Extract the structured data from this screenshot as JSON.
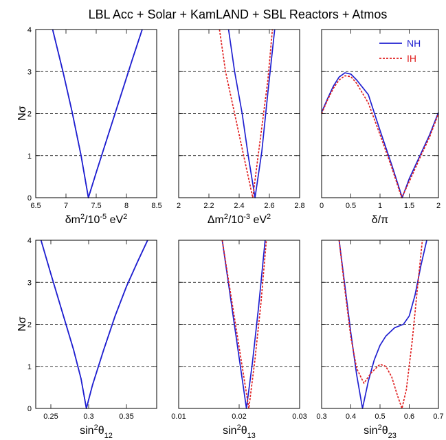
{
  "title": "LBL Acc + Solar + KamLAND + SBL Reactors + Atmos",
  "ylabel": "Nσ",
  "legend": [
    {
      "label": "NH",
      "color": "#1f1fd0",
      "dash": "solid"
    },
    {
      "label": "IH",
      "color": "#e02020",
      "dash": "dotted"
    }
  ],
  "chart_data": [
    {
      "type": "line",
      "id": "dm2-small",
      "xlabel": {
        "main": "δm",
        "sup1": "2",
        "mid": "/10",
        "sup2": "-5",
        "tail": " eV",
        "sup3": "2"
      },
      "xlim": [
        6.5,
        8.5
      ],
      "ylim": [
        0,
        4
      ],
      "xticks": [
        6.5,
        7,
        7.5,
        8,
        8.5
      ],
      "xtick_labels": [
        "6.5",
        "7",
        "7.5",
        "8",
        "8.5"
      ],
      "yticks": [
        0,
        1,
        2,
        3,
        4
      ],
      "ytick_labels": [
        "0",
        "1",
        "2",
        "3",
        "4"
      ],
      "grid_y": [
        1,
        2,
        3
      ],
      "series": [
        {
          "name": "NH",
          "color": "#1f1fd0",
          "dash": "solid",
          "x": [
            6.78,
            6.95,
            7.1,
            7.25,
            7.37,
            7.5,
            7.7,
            7.9,
            8.1,
            8.26
          ],
          "y": [
            4.0,
            3.0,
            2.05,
            1.0,
            0.0,
            0.6,
            1.5,
            2.4,
            3.3,
            4.0
          ]
        },
        {
          "name": "IH",
          "color": "#1f1fd0",
          "dash": "solid",
          "x": [
            6.78,
            6.95,
            7.1,
            7.25,
            7.37,
            7.5,
            7.7,
            7.9,
            8.1,
            8.26
          ],
          "y": [
            4.0,
            3.0,
            2.05,
            1.0,
            0.0,
            0.6,
            1.5,
            2.4,
            3.3,
            4.0
          ]
        }
      ]
    },
    {
      "type": "line",
      "id": "dm2-large",
      "xlabel": {
        "main": "Δm",
        "sup1": "2",
        "mid": "/10",
        "sup2": "-3",
        "tail": " eV",
        "sup3": "2"
      },
      "xlim": [
        2.0,
        2.8
      ],
      "ylim": [
        0,
        4
      ],
      "xticks": [
        2.0,
        2.2,
        2.4,
        2.6,
        2.8
      ],
      "xtick_labels": [
        "2",
        "2.2",
        "2.4",
        "2.6",
        "2.8"
      ],
      "yticks": [
        0,
        1,
        2,
        3,
        4
      ],
      "ytick_labels": [
        "",
        "",
        "",
        "",
        ""
      ],
      "grid_y": [
        1,
        2,
        3
      ],
      "series": [
        {
          "name": "NH",
          "color": "#1f1fd0",
          "dash": "solid",
          "x": [
            2.33,
            2.37,
            2.42,
            2.46,
            2.505,
            2.55,
            2.59,
            2.635
          ],
          "y": [
            4.0,
            3.0,
            2.0,
            1.0,
            0.0,
            1.1,
            2.5,
            4.0
          ]
        },
        {
          "name": "IH",
          "color": "#e02020",
          "dash": "dotted",
          "x": [
            2.27,
            2.31,
            2.37,
            2.43,
            2.49,
            2.54,
            2.59,
            2.62
          ],
          "y": [
            4.0,
            3.0,
            2.0,
            1.0,
            0.0,
            1.4,
            2.8,
            4.0
          ]
        }
      ]
    },
    {
      "type": "line",
      "id": "delta",
      "xlabel": {
        "main": "δ/π"
      },
      "xlim": [
        0,
        2
      ],
      "ylim": [
        0,
        4
      ],
      "xticks": [
        0,
        0.5,
        1.0,
        1.5,
        2.0
      ],
      "xtick_labels": [
        "0",
        "0.5",
        "1",
        "1.5",
        "2"
      ],
      "yticks": [
        0,
        1,
        2,
        3,
        4
      ],
      "ytick_labels": [
        "",
        "",
        "",
        "",
        ""
      ],
      "grid_y": [
        1,
        2,
        3
      ],
      "series": [
        {
          "name": "NH",
          "color": "#1f1fd0",
          "dash": "solid",
          "x": [
            0,
            0.1,
            0.2,
            0.3,
            0.4,
            0.5,
            0.6,
            0.8,
            1.0,
            1.2,
            1.38,
            1.5,
            1.7,
            1.85,
            2.0
          ],
          "y": [
            2.03,
            2.35,
            2.65,
            2.87,
            2.97,
            2.94,
            2.8,
            2.45,
            1.6,
            0.78,
            0.0,
            0.45,
            1.05,
            1.5,
            2.03
          ]
        },
        {
          "name": "IH",
          "color": "#e02020",
          "dash": "dotted",
          "x": [
            0,
            0.1,
            0.2,
            0.3,
            0.4,
            0.5,
            0.6,
            0.8,
            1.0,
            1.2,
            1.37,
            1.5,
            1.7,
            1.85,
            2.0
          ],
          "y": [
            2.0,
            2.32,
            2.6,
            2.8,
            2.9,
            2.88,
            2.72,
            2.25,
            1.5,
            0.72,
            0.0,
            0.38,
            1.0,
            1.45,
            2.0
          ]
        }
      ]
    },
    {
      "type": "line",
      "id": "sin2-12",
      "xlabel": {
        "main": "sin",
        "sup1": "2",
        "mid": "θ",
        "sub": "12"
      },
      "xlim": [
        0.23,
        0.39
      ],
      "ylim": [
        0,
        4
      ],
      "xticks": [
        0.25,
        0.3,
        0.35
      ],
      "xtick_labels": [
        "0.25",
        "0.3",
        "0.35"
      ],
      "yticks": [
        0,
        1,
        2,
        3,
        4
      ],
      "ytick_labels": [
        "0",
        "1",
        "2",
        "3",
        "4"
      ],
      "grid_y": [
        1,
        2,
        3
      ],
      "series": [
        {
          "name": "NH",
          "color": "#1f1fd0",
          "dash": "solid",
          "x": [
            0.237,
            0.25,
            0.265,
            0.28,
            0.29,
            0.297,
            0.305,
            0.32,
            0.335,
            0.35,
            0.365,
            0.378
          ],
          "y": [
            4.0,
            3.2,
            2.3,
            1.4,
            0.7,
            0.0,
            0.55,
            1.4,
            2.2,
            2.9,
            3.5,
            4.0
          ]
        },
        {
          "name": "IH",
          "color": "#1f1fd0",
          "dash": "solid",
          "x": [
            0.237,
            0.25,
            0.265,
            0.28,
            0.29,
            0.297,
            0.305,
            0.32,
            0.335,
            0.35,
            0.365,
            0.378
          ],
          "y": [
            4.0,
            3.2,
            2.3,
            1.4,
            0.7,
            0.0,
            0.55,
            1.4,
            2.2,
            2.9,
            3.5,
            4.0
          ]
        }
      ]
    },
    {
      "type": "line",
      "id": "sin2-13",
      "xlabel": {
        "main": "sin",
        "sup1": "2",
        "mid": "θ",
        "sub": "13"
      },
      "xlim": [
        0.01,
        0.03
      ],
      "ylim": [
        0,
        4
      ],
      "xticks": [
        0.01,
        0.02,
        0.03
      ],
      "xtick_labels": [
        "0.01",
        "0.02",
        "0.03"
      ],
      "yticks": [
        0,
        1,
        2,
        3,
        4
      ],
      "ytick_labels": [
        "",
        "",
        "",
        "",
        ""
      ],
      "grid_y": [
        1,
        2,
        3
      ],
      "series": [
        {
          "name": "NH",
          "color": "#1f1fd0",
          "dash": "solid",
          "x": [
            0.0172,
            0.0182,
            0.0192,
            0.0202,
            0.0212,
            0.0222,
            0.0232,
            0.0243
          ],
          "y": [
            4.0,
            3.0,
            2.0,
            1.0,
            0.0,
            1.1,
            2.4,
            4.0
          ]
        },
        {
          "name": "IH",
          "color": "#e02020",
          "dash": "dotted",
          "x": [
            0.0172,
            0.0183,
            0.0194,
            0.0205,
            0.0216,
            0.0226,
            0.0236,
            0.0245
          ],
          "y": [
            4.0,
            3.0,
            2.0,
            1.0,
            0.0,
            1.15,
            2.5,
            4.0
          ]
        }
      ]
    },
    {
      "type": "line",
      "id": "sin2-23",
      "xlabel": {
        "main": "sin",
        "sup1": "2",
        "mid": "θ",
        "sub": "23"
      },
      "xlim": [
        0.3,
        0.7
      ],
      "ylim": [
        0,
        4
      ],
      "xticks": [
        0.3,
        0.4,
        0.5,
        0.6,
        0.7
      ],
      "xtick_labels": [
        "0.3",
        "0.4",
        "0.5",
        "0.6",
        "0.7"
      ],
      "yticks": [
        0,
        1,
        2,
        3,
        4
      ],
      "ytick_labels": [
        "",
        "",
        "",
        "",
        ""
      ],
      "grid_y": [
        1,
        2,
        3
      ],
      "series": [
        {
          "name": "NH",
          "color": "#1f1fd0",
          "dash": "solid",
          "x": [
            0.36,
            0.38,
            0.4,
            0.42,
            0.44,
            0.46,
            0.48,
            0.5,
            0.52,
            0.55,
            0.58,
            0.6,
            0.62,
            0.64,
            0.66
          ],
          "y": [
            4.0,
            2.9,
            1.8,
            0.8,
            0.0,
            0.65,
            1.15,
            1.5,
            1.72,
            1.92,
            2.0,
            2.2,
            2.7,
            3.4,
            4.0
          ]
        },
        {
          "name": "IH",
          "color": "#e02020",
          "dash": "dotted",
          "x": [
            0.36,
            0.38,
            0.4,
            0.42,
            0.445,
            0.47,
            0.5,
            0.52,
            0.54,
            0.56,
            0.575,
            0.59,
            0.61,
            0.63,
            0.645
          ],
          "y": [
            4.0,
            2.8,
            1.7,
            0.95,
            0.6,
            0.85,
            1.05,
            1.0,
            0.75,
            0.3,
            0.0,
            0.45,
            1.6,
            3.0,
            4.0
          ]
        }
      ]
    }
  ]
}
